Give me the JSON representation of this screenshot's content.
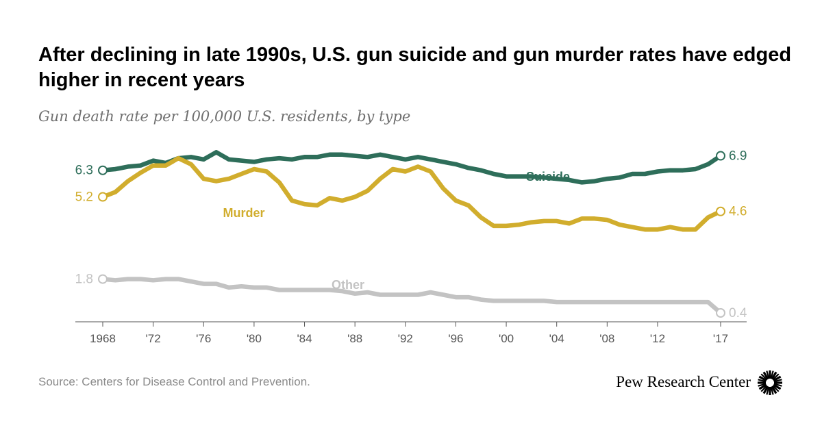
{
  "header": {
    "title": "After declining in late 1990s, U.S. gun suicide and gun murder rates have edged higher in recent years",
    "subtitle": "Gun death rate per 100,000 U.S. residents, by type"
  },
  "footer": {
    "source": "Source: Centers for Disease Control and Prevention.",
    "brand": "Pew Research Center",
    "logo_icon": "pew-sunburst-icon"
  },
  "chart_data": {
    "type": "line",
    "title": "After declining in late 1990s, U.S. gun suicide and gun murder rates have edged higher in recent years",
    "subtitle": "Gun death rate per 100,000 U.S. residents, by type",
    "xlabel": "",
    "ylabel": "",
    "grid": false,
    "legend": "inline labels",
    "xlim": [
      1968,
      2017
    ],
    "ylim": [
      0.4,
      7.6
    ],
    "x_ticks": [
      {
        "year": 1968,
        "label": "1968"
      },
      {
        "year": 1972,
        "label": "'72"
      },
      {
        "year": 1976,
        "label": "'76"
      },
      {
        "year": 1980,
        "label": "'80"
      },
      {
        "year": 1984,
        "label": "'84"
      },
      {
        "year": 1988,
        "label": "'88"
      },
      {
        "year": 1992,
        "label": "'92"
      },
      {
        "year": 1996,
        "label": "'96"
      },
      {
        "year": 2000,
        "label": "'00"
      },
      {
        "year": 2004,
        "label": "'04"
      },
      {
        "year": 2008,
        "label": "'08"
      },
      {
        "year": 2012,
        "label": "'12"
      },
      {
        "year": 2017,
        "label": "'17"
      }
    ],
    "x": [
      1968,
      1969,
      1970,
      1971,
      1972,
      1973,
      1974,
      1975,
      1976,
      1977,
      1978,
      1979,
      1980,
      1981,
      1982,
      1983,
      1984,
      1985,
      1986,
      1987,
      1988,
      1989,
      1990,
      1991,
      1992,
      1993,
      1994,
      1995,
      1996,
      1997,
      1998,
      1999,
      2000,
      2001,
      2002,
      2003,
      2004,
      2005,
      2006,
      2007,
      2008,
      2009,
      2010,
      2011,
      2012,
      2013,
      2014,
      2015,
      2016,
      2017
    ],
    "series": [
      {
        "name": "Suicide",
        "color": "#2e6e5a",
        "start_label": "6.3",
        "end_label": "6.9",
        "values": [
          6.3,
          6.35,
          6.45,
          6.5,
          6.7,
          6.6,
          6.8,
          6.85,
          6.75,
          7.05,
          6.75,
          6.7,
          6.65,
          6.75,
          6.8,
          6.75,
          6.85,
          6.85,
          6.95,
          6.95,
          6.9,
          6.85,
          6.95,
          6.85,
          6.75,
          6.85,
          6.75,
          6.65,
          6.55,
          6.4,
          6.3,
          6.15,
          6.05,
          6.05,
          6.05,
          6.0,
          5.95,
          5.9,
          5.8,
          5.85,
          5.95,
          6.0,
          6.15,
          6.15,
          6.25,
          6.3,
          6.3,
          6.35,
          6.55,
          6.9
        ]
      },
      {
        "name": "Murder",
        "color": "#d1ad2d",
        "start_label": "5.2",
        "end_label": "4.6",
        "values": [
          5.2,
          5.4,
          5.85,
          6.2,
          6.5,
          6.5,
          6.8,
          6.55,
          5.95,
          5.85,
          5.95,
          6.15,
          6.35,
          6.25,
          5.8,
          5.05,
          4.9,
          4.85,
          5.15,
          5.05,
          5.2,
          5.45,
          5.95,
          6.35,
          6.25,
          6.45,
          6.25,
          5.55,
          5.05,
          4.85,
          4.35,
          4.0,
          4.0,
          4.05,
          4.15,
          4.2,
          4.2,
          4.1,
          4.3,
          4.3,
          4.25,
          4.05,
          3.95,
          3.85,
          3.85,
          3.95,
          3.85,
          3.85,
          4.35,
          4.6
        ]
      },
      {
        "name": "Other",
        "color": "#c3c3c3",
        "start_label": "1.8",
        "end_label": "0.4",
        "values": [
          1.8,
          1.75,
          1.8,
          1.8,
          1.75,
          1.8,
          1.8,
          1.7,
          1.6,
          1.6,
          1.45,
          1.5,
          1.45,
          1.45,
          1.35,
          1.35,
          1.35,
          1.35,
          1.35,
          1.3,
          1.2,
          1.25,
          1.15,
          1.15,
          1.15,
          1.15,
          1.25,
          1.15,
          1.05,
          1.05,
          0.95,
          0.9,
          0.9,
          0.9,
          0.9,
          0.9,
          0.85,
          0.85,
          0.85,
          0.85,
          0.85,
          0.85,
          0.85,
          0.85,
          0.85,
          0.85,
          0.85,
          0.85,
          0.85,
          0.4
        ]
      }
    ]
  }
}
